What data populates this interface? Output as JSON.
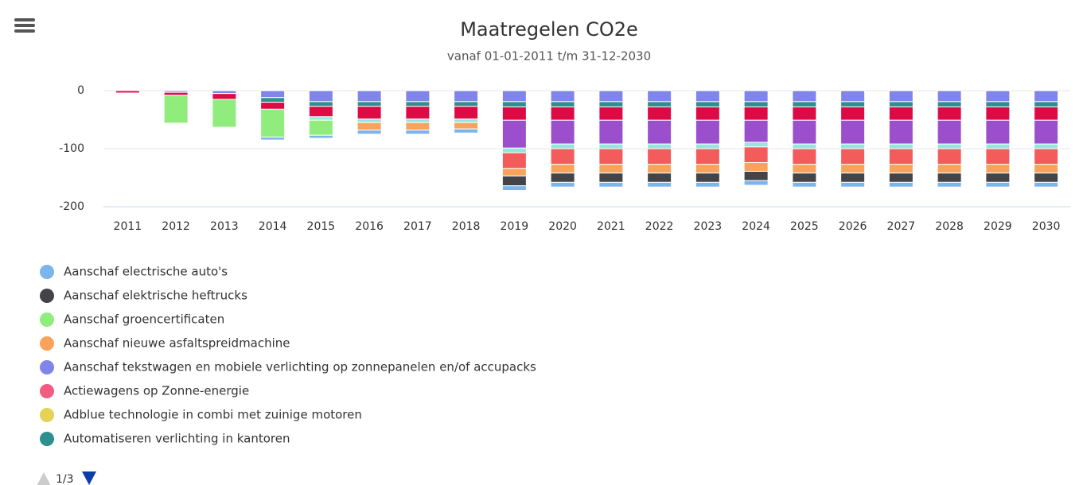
{
  "chart_data": {
    "type": "stacked-bar",
    "title": "Maatregelen CO2e",
    "subtitle": "vanaf 01-01-2011 t/m 31-12-2030",
    "categories": [
      "2011",
      "2012",
      "2013",
      "2014",
      "2015",
      "2016",
      "2017",
      "2018",
      "2019",
      "2020",
      "2021",
      "2022",
      "2023",
      "2024",
      "2025",
      "2026",
      "2027",
      "2028",
      "2029",
      "2030"
    ],
    "ylim": [
      -200,
      15
    ],
    "yticks": [
      0,
      -100,
      -200
    ],
    "grid": true,
    "legend_page": "1/3",
    "series": [
      {
        "name": "Aanschaf tekstwagen en mobiele verlichting op zonnepanelen en/of accupacks",
        "color": "#8085e9",
        "values": [
          0,
          -3,
          -5,
          -12,
          -19,
          -19,
          -19,
          -19,
          -19,
          -19,
          -19,
          -19,
          -19,
          -19,
          -19,
          -19,
          -19,
          -19,
          -19,
          -19
        ]
      },
      {
        "name": "Automatiseren verlichting in kantoren",
        "color": "#2b908f",
        "values": [
          0,
          0,
          0,
          -8,
          -8,
          -8,
          -8,
          -8,
          -9,
          -9,
          -9,
          -9,
          -9,
          -9,
          -9,
          -9,
          -9,
          -9,
          -9,
          -9
        ]
      },
      {
        "color": "#dc0a45",
        "values": [
          -4,
          -5,
          -10,
          -12,
          -18,
          -22,
          -22,
          -22,
          -23,
          -23,
          -23,
          -23,
          -23,
          -23,
          -23,
          -23,
          -23,
          -23,
          -23,
          -23
        ]
      },
      {
        "color": "#9b4fcc",
        "values": [
          0,
          0,
          0,
          0,
          0,
          0,
          0,
          0,
          -48,
          -41,
          -41,
          -41,
          -41,
          -38,
          -41,
          -41,
          -41,
          -41,
          -41,
          -41
        ]
      },
      {
        "color": "#91e8e1",
        "values": [
          0,
          0,
          0,
          0,
          -6,
          -6,
          -6,
          -6,
          -8,
          -8,
          -8,
          -8,
          -8,
          -8,
          -8,
          -8,
          -8,
          -8,
          -8,
          -8
        ]
      },
      {
        "name": "Aanschaf groencertificaten",
        "color": "#90ed7d",
        "values": [
          0,
          -48,
          -48,
          -48,
          -26,
          0,
          0,
          0,
          0,
          0,
          0,
          0,
          0,
          0,
          0,
          0,
          0,
          0,
          0,
          0
        ]
      },
      {
        "name": "Actiewagens op Zonne-energie",
        "color": "#f15c80",
        "values": [
          0,
          0,
          0,
          0,
          0,
          0,
          0,
          0,
          0,
          0,
          0,
          0,
          0,
          0,
          0,
          0,
          0,
          0,
          0,
          0
        ]
      },
      {
        "name": "Adblue technologie in combi met zuinige motoren",
        "color": "#e4d354",
        "values": [
          0,
          0,
          0,
          0,
          0,
          0,
          0,
          0,
          0,
          0,
          0,
          0,
          0,
          0,
          0,
          0,
          0,
          0,
          0,
          0
        ]
      },
      {
        "color": "#f45b5b",
        "values": [
          0,
          0,
          0,
          0,
          0,
          0,
          0,
          0,
          -27,
          -27,
          -27,
          -27,
          -27,
          -27,
          -27,
          -27,
          -27,
          -27,
          -27,
          -27
        ]
      },
      {
        "name": "Aanschaf nieuwe asfaltspreidmachine",
        "color": "#f7a35c",
        "values": [
          0,
          0,
          0,
          0,
          0,
          -13,
          -13,
          -11,
          -13,
          -15,
          -15,
          -15,
          -15,
          -15,
          -15,
          -15,
          -15,
          -15,
          -15,
          -15
        ]
      },
      {
        "name": "Aanschaf elektrische heftrucks",
        "color": "#434348",
        "values": [
          0,
          0,
          0,
          0,
          0,
          0,
          0,
          0,
          -17,
          -16,
          -16,
          -16,
          -16,
          -16,
          -16,
          -16,
          -16,
          -16,
          -16,
          -16
        ]
      },
      {
        "name": "Aanschaf electrische auto's",
        "color": "#7cb5ec",
        "values": [
          0,
          0,
          0,
          -5,
          -5,
          -7,
          -7,
          -7,
          -8,
          -8,
          -8,
          -8,
          -8,
          -8,
          -8,
          -8,
          -8,
          -8,
          -8,
          -8
        ]
      }
    ]
  }
}
